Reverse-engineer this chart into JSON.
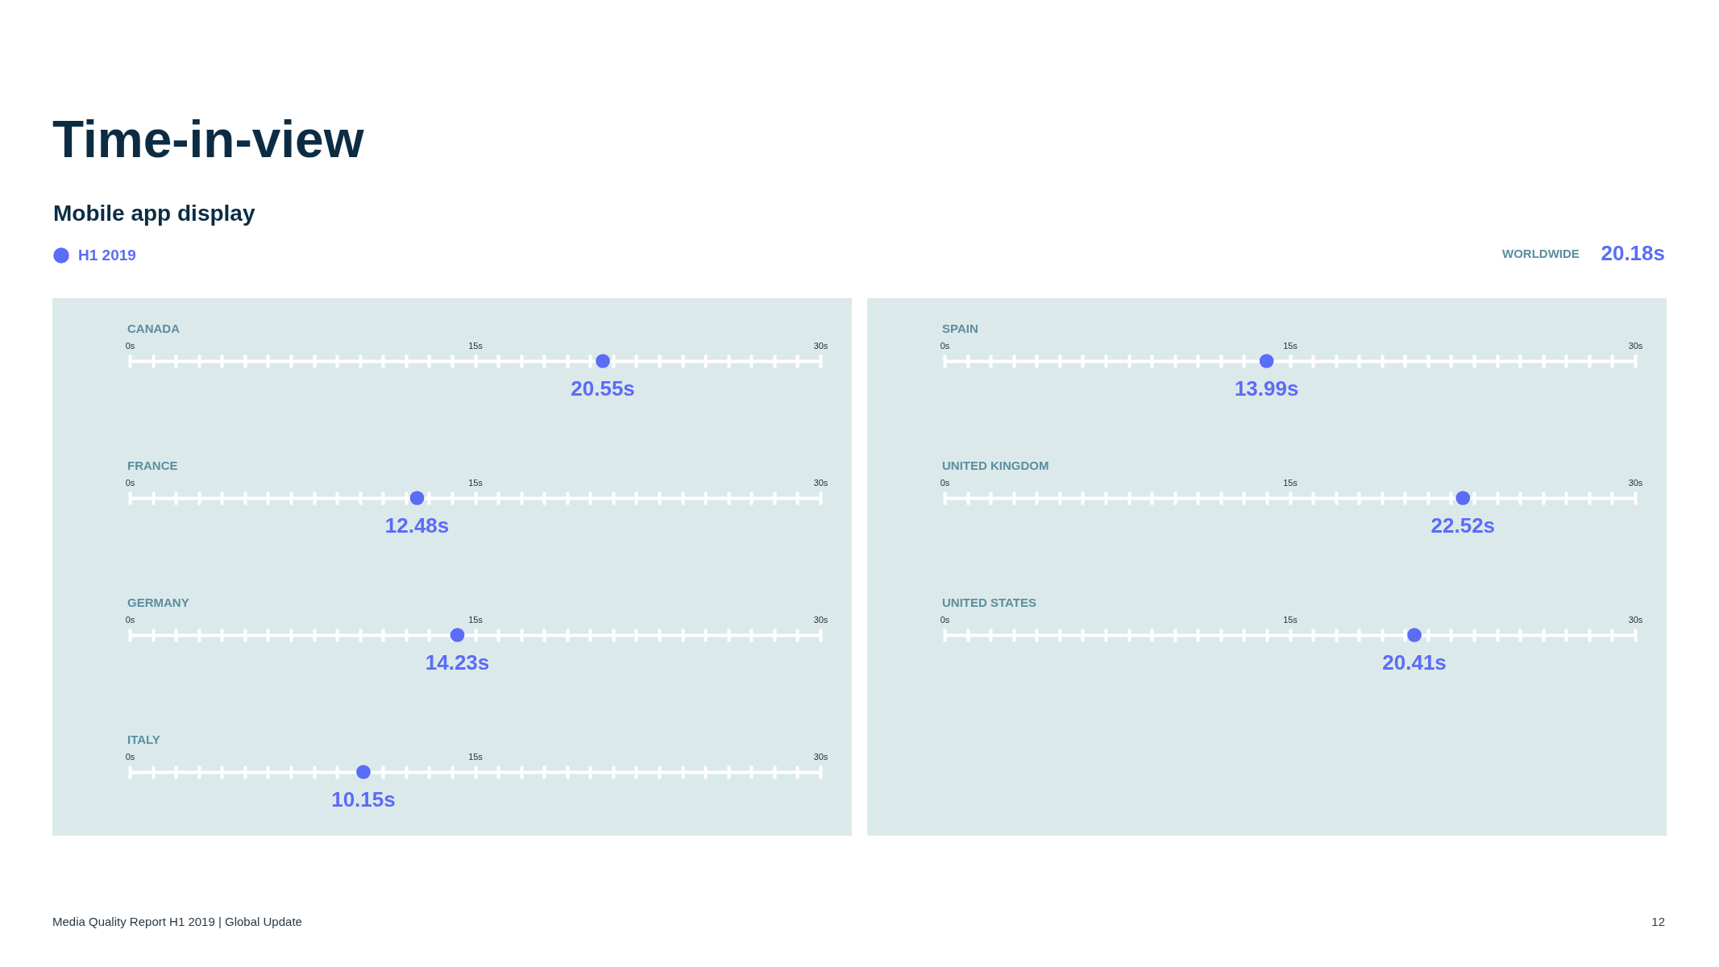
{
  "chart_data": [
    {
      "type": "scatter",
      "title": "Time-in-view",
      "subtitle": "Mobile app display",
      "orientation": "horizontal",
      "categories": [
        "CANADA"
      ],
      "series": [
        {
          "name": "H1 2019",
          "color": "#5b6cf6",
          "values": [
            20.55
          ],
          "value_labels": [
            "20.55s"
          ]
        }
      ],
      "xlim": [
        0,
        30
      ],
      "xticks": [
        {
          "value": 0,
          "label": "0s"
        },
        {
          "value": 1,
          "label": null
        },
        {
          "value": 2,
          "label": null
        },
        {
          "value": 3,
          "label": null
        },
        {
          "value": 4,
          "label": null
        },
        {
          "value": 5,
          "label": null
        },
        {
          "value": 6,
          "label": null
        },
        {
          "value": 7,
          "label": null
        },
        {
          "value": 8,
          "label": null
        },
        {
          "value": 9,
          "label": null
        },
        {
          "value": 10,
          "label": null
        },
        {
          "value": 11,
          "label": null
        },
        {
          "value": 12,
          "label": null
        },
        {
          "value": 13,
          "label": null
        },
        {
          "value": 14,
          "label": null
        },
        {
          "value": 15,
          "label": "15s"
        },
        {
          "value": 16,
          "label": null
        },
        {
          "value": 17,
          "label": null
        },
        {
          "value": 18,
          "label": null
        },
        {
          "value": 19,
          "label": null
        },
        {
          "value": 20,
          "label": null
        },
        {
          "value": 21,
          "label": null
        },
        {
          "value": 22,
          "label": null
        },
        {
          "value": 23,
          "label": null
        },
        {
          "value": 24,
          "label": null
        },
        {
          "value": 25,
          "label": null
        },
        {
          "value": 26,
          "label": null
        },
        {
          "value": 27,
          "label": null
        },
        {
          "value": 28,
          "label": null
        },
        {
          "value": 29,
          "label": null
        },
        {
          "value": 30,
          "label": "30s"
        }
      ],
      "marker": "circle",
      "legend": "top left",
      "annotations": [
        "WORLDWIDE",
        "20.18s",
        "Media Quality Report H1 2019 | Global Update",
        "12"
      ]
    },
    {
      "type": "scatter",
      "orientation": "horizontal",
      "categories": [
        "FRANCE"
      ],
      "series": [
        {
          "color": "#5b6cf6",
          "values": [
            12.48
          ],
          "value_labels": [
            "12.48s"
          ]
        }
      ],
      "xlim": [
        0,
        30
      ],
      "xticks": [
        {
          "value": 0,
          "label": "0s"
        },
        {
          "value": 1,
          "label": null
        },
        {
          "value": 2,
          "label": null
        },
        {
          "value": 3,
          "label": null
        },
        {
          "value": 4,
          "label": null
        },
        {
          "value": 5,
          "label": null
        },
        {
          "value": 6,
          "label": null
        },
        {
          "value": 7,
          "label": null
        },
        {
          "value": 8,
          "label": null
        },
        {
          "value": 9,
          "label": null
        },
        {
          "value": 10,
          "label": null
        },
        {
          "value": 11,
          "label": null
        },
        {
          "value": 12,
          "label": null
        },
        {
          "value": 13,
          "label": null
        },
        {
          "value": 14,
          "label": null
        },
        {
          "value": 15,
          "label": "15s"
        },
        {
          "value": 16,
          "label": null
        },
        {
          "value": 17,
          "label": null
        },
        {
          "value": 18,
          "label": null
        },
        {
          "value": 19,
          "label": null
        },
        {
          "value": 20,
          "label": null
        },
        {
          "value": 21,
          "label": null
        },
        {
          "value": 22,
          "label": null
        },
        {
          "value": 23,
          "label": null
        },
        {
          "value": 24,
          "label": null
        },
        {
          "value": 25,
          "label": null
        },
        {
          "value": 26,
          "label": null
        },
        {
          "value": 27,
          "label": null
        },
        {
          "value": 28,
          "label": null
        },
        {
          "value": 29,
          "label": null
        },
        {
          "value": 30,
          "label": "30s"
        }
      ],
      "marker": "circle"
    },
    {
      "type": "scatter",
      "orientation": "horizontal",
      "categories": [
        "GERMANY"
      ],
      "series": [
        {
          "color": "#5b6cf6",
          "values": [
            14.23
          ],
          "value_labels": [
            "14.23s"
          ]
        }
      ],
      "xlim": [
        0,
        30
      ],
      "xticks": [
        {
          "value": 0,
          "label": "0s"
        },
        {
          "value": 1,
          "label": null
        },
        {
          "value": 2,
          "label": null
        },
        {
          "value": 3,
          "label": null
        },
        {
          "value": 4,
          "label": null
        },
        {
          "value": 5,
          "label": null
        },
        {
          "value": 6,
          "label": null
        },
        {
          "value": 7,
          "label": null
        },
        {
          "value": 8,
          "label": null
        },
        {
          "value": 9,
          "label": null
        },
        {
          "value": 10,
          "label": null
        },
        {
          "value": 11,
          "label": null
        },
        {
          "value": 12,
          "label": null
        },
        {
          "value": 13,
          "label": null
        },
        {
          "value": 14,
          "label": null
        },
        {
          "value": 15,
          "label": "15s"
        },
        {
          "value": 16,
          "label": null
        },
        {
          "value": 17,
          "label": null
        },
        {
          "value": 18,
          "label": null
        },
        {
          "value": 19,
          "label": null
        },
        {
          "value": 20,
          "label": null
        },
        {
          "value": 21,
          "label": null
        },
        {
          "value": 22,
          "label": null
        },
        {
          "value": 23,
          "label": null
        },
        {
          "value": 24,
          "label": null
        },
        {
          "value": 25,
          "label": null
        },
        {
          "value": 26,
          "label": null
        },
        {
          "value": 27,
          "label": null
        },
        {
          "value": 28,
          "label": null
        },
        {
          "value": 29,
          "label": null
        },
        {
          "value": 30,
          "label": "30s"
        }
      ],
      "marker": "circle"
    },
    {
      "type": "scatter",
      "orientation": "horizontal",
      "categories": [
        "ITALY"
      ],
      "series": [
        {
          "color": "#5b6cf6",
          "values": [
            10.15
          ],
          "value_labels": [
            "10.15s"
          ]
        }
      ],
      "xlim": [
        0,
        30
      ],
      "xticks": [
        {
          "value": 0,
          "label": "0s"
        },
        {
          "value": 1,
          "label": null
        },
        {
          "value": 2,
          "label": null
        },
        {
          "value": 3,
          "label": null
        },
        {
          "value": 4,
          "label": null
        },
        {
          "value": 5,
          "label": null
        },
        {
          "value": 6,
          "label": null
        },
        {
          "value": 7,
          "label": null
        },
        {
          "value": 8,
          "label": null
        },
        {
          "value": 9,
          "label": null
        },
        {
          "value": 10,
          "label": null
        },
        {
          "value": 11,
          "label": null
        },
        {
          "value": 12,
          "label": null
        },
        {
          "value": 13,
          "label": null
        },
        {
          "value": 14,
          "label": null
        },
        {
          "value": 15,
          "label": "15s"
        },
        {
          "value": 16,
          "label": null
        },
        {
          "value": 17,
          "label": null
        },
        {
          "value": 18,
          "label": null
        },
        {
          "value": 19,
          "label": null
        },
        {
          "value": 20,
          "label": null
        },
        {
          "value": 21,
          "label": null
        },
        {
          "value": 22,
          "label": null
        },
        {
          "value": 23,
          "label": null
        },
        {
          "value": 24,
          "label": null
        },
        {
          "value": 25,
          "label": null
        },
        {
          "value": 26,
          "label": null
        },
        {
          "value": 27,
          "label": null
        },
        {
          "value": 28,
          "label": null
        },
        {
          "value": 29,
          "label": null
        },
        {
          "value": 30,
          "label": "30s"
        }
      ],
      "marker": "circle"
    },
    {
      "type": "scatter",
      "orientation": "horizontal",
      "categories": [
        "SPAIN"
      ],
      "series": [
        {
          "color": "#5b6cf6",
          "values": [
            13.99
          ],
          "value_labels": [
            "13.99s"
          ]
        }
      ],
      "xlim": [
        0,
        30
      ],
      "xticks": [
        {
          "value": 0,
          "label": "0s"
        },
        {
          "value": 1,
          "label": null
        },
        {
          "value": 2,
          "label": null
        },
        {
          "value": 3,
          "label": null
        },
        {
          "value": 4,
          "label": null
        },
        {
          "value": 5,
          "label": null
        },
        {
          "value": 6,
          "label": null
        },
        {
          "value": 7,
          "label": null
        },
        {
          "value": 8,
          "label": null
        },
        {
          "value": 9,
          "label": null
        },
        {
          "value": 10,
          "label": null
        },
        {
          "value": 11,
          "label": null
        },
        {
          "value": 12,
          "label": null
        },
        {
          "value": 13,
          "label": null
        },
        {
          "value": 14,
          "label": null
        },
        {
          "value": 15,
          "label": "15s"
        },
        {
          "value": 16,
          "label": null
        },
        {
          "value": 17,
          "label": null
        },
        {
          "value": 18,
          "label": null
        },
        {
          "value": 19,
          "label": null
        },
        {
          "value": 20,
          "label": null
        },
        {
          "value": 21,
          "label": null
        },
        {
          "value": 22,
          "label": null
        },
        {
          "value": 23,
          "label": null
        },
        {
          "value": 24,
          "label": null
        },
        {
          "value": 25,
          "label": null
        },
        {
          "value": 26,
          "label": null
        },
        {
          "value": 27,
          "label": null
        },
        {
          "value": 28,
          "label": null
        },
        {
          "value": 29,
          "label": null
        },
        {
          "value": 30,
          "label": "30s"
        }
      ],
      "marker": "circle"
    },
    {
      "type": "scatter",
      "orientation": "horizontal",
      "categories": [
        "UNITED KINGDOM"
      ],
      "series": [
        {
          "color": "#5b6cf6",
          "values": [
            22.52
          ],
          "value_labels": [
            "22.52s"
          ]
        }
      ],
      "xlim": [
        0,
        30
      ],
      "xticks": [
        {
          "value": 0,
          "label": "0s"
        },
        {
          "value": 1,
          "label": null
        },
        {
          "value": 2,
          "label": null
        },
        {
          "value": 3,
          "label": null
        },
        {
          "value": 4,
          "label": null
        },
        {
          "value": 5,
          "label": null
        },
        {
          "value": 6,
          "label": null
        },
        {
          "value": 7,
          "label": null
        },
        {
          "value": 8,
          "label": null
        },
        {
          "value": 9,
          "label": null
        },
        {
          "value": 10,
          "label": null
        },
        {
          "value": 11,
          "label": null
        },
        {
          "value": 12,
          "label": null
        },
        {
          "value": 13,
          "label": null
        },
        {
          "value": 14,
          "label": null
        },
        {
          "value": 15,
          "label": "15s"
        },
        {
          "value": 16,
          "label": null
        },
        {
          "value": 17,
          "label": null
        },
        {
          "value": 18,
          "label": null
        },
        {
          "value": 19,
          "label": null
        },
        {
          "value": 20,
          "label": null
        },
        {
          "value": 21,
          "label": null
        },
        {
          "value": 22,
          "label": null
        },
        {
          "value": 23,
          "label": null
        },
        {
          "value": 24,
          "label": null
        },
        {
          "value": 25,
          "label": null
        },
        {
          "value": 26,
          "label": null
        },
        {
          "value": 27,
          "label": null
        },
        {
          "value": 28,
          "label": null
        },
        {
          "value": 29,
          "label": null
        },
        {
          "value": 30,
          "label": "30s"
        }
      ],
      "marker": "circle"
    },
    {
      "type": "scatter",
      "orientation": "horizontal",
      "categories": [
        "UNITED STATES"
      ],
      "series": [
        {
          "color": "#5b6cf6",
          "values": [
            20.41
          ],
          "value_labels": [
            "20.41s"
          ]
        }
      ],
      "xlim": [
        0,
        30
      ],
      "xticks": [
        {
          "value": 0,
          "label": "0s"
        },
        {
          "value": 1,
          "label": null
        },
        {
          "value": 2,
          "label": null
        },
        {
          "value": 3,
          "label": null
        },
        {
          "value": 4,
          "label": null
        },
        {
          "value": 5,
          "label": null
        },
        {
          "value": 6,
          "label": null
        },
        {
          "value": 7,
          "label": null
        },
        {
          "value": 8,
          "label": null
        },
        {
          "value": 9,
          "label": null
        },
        {
          "value": 10,
          "label": null
        },
        {
          "value": 11,
          "label": null
        },
        {
          "value": 12,
          "label": null
        },
        {
          "value": 13,
          "label": null
        },
        {
          "value": 14,
          "label": null
        },
        {
          "value": 15,
          "label": "15s"
        },
        {
          "value": 16,
          "label": null
        },
        {
          "value": 17,
          "label": null
        },
        {
          "value": 18,
          "label": null
        },
        {
          "value": 19,
          "label": null
        },
        {
          "value": 20,
          "label": null
        },
        {
          "value": 21,
          "label": null
        },
        {
          "value": 22,
          "label": null
        },
        {
          "value": 23,
          "label": null
        },
        {
          "value": 24,
          "label": null
        },
        {
          "value": 25,
          "label": null
        },
        {
          "value": 26,
          "label": null
        },
        {
          "value": 27,
          "label": null
        },
        {
          "value": 28,
          "label": null
        },
        {
          "value": 29,
          "label": null
        },
        {
          "value": 30,
          "label": "30s"
        }
      ],
      "marker": "circle"
    }
  ]
}
